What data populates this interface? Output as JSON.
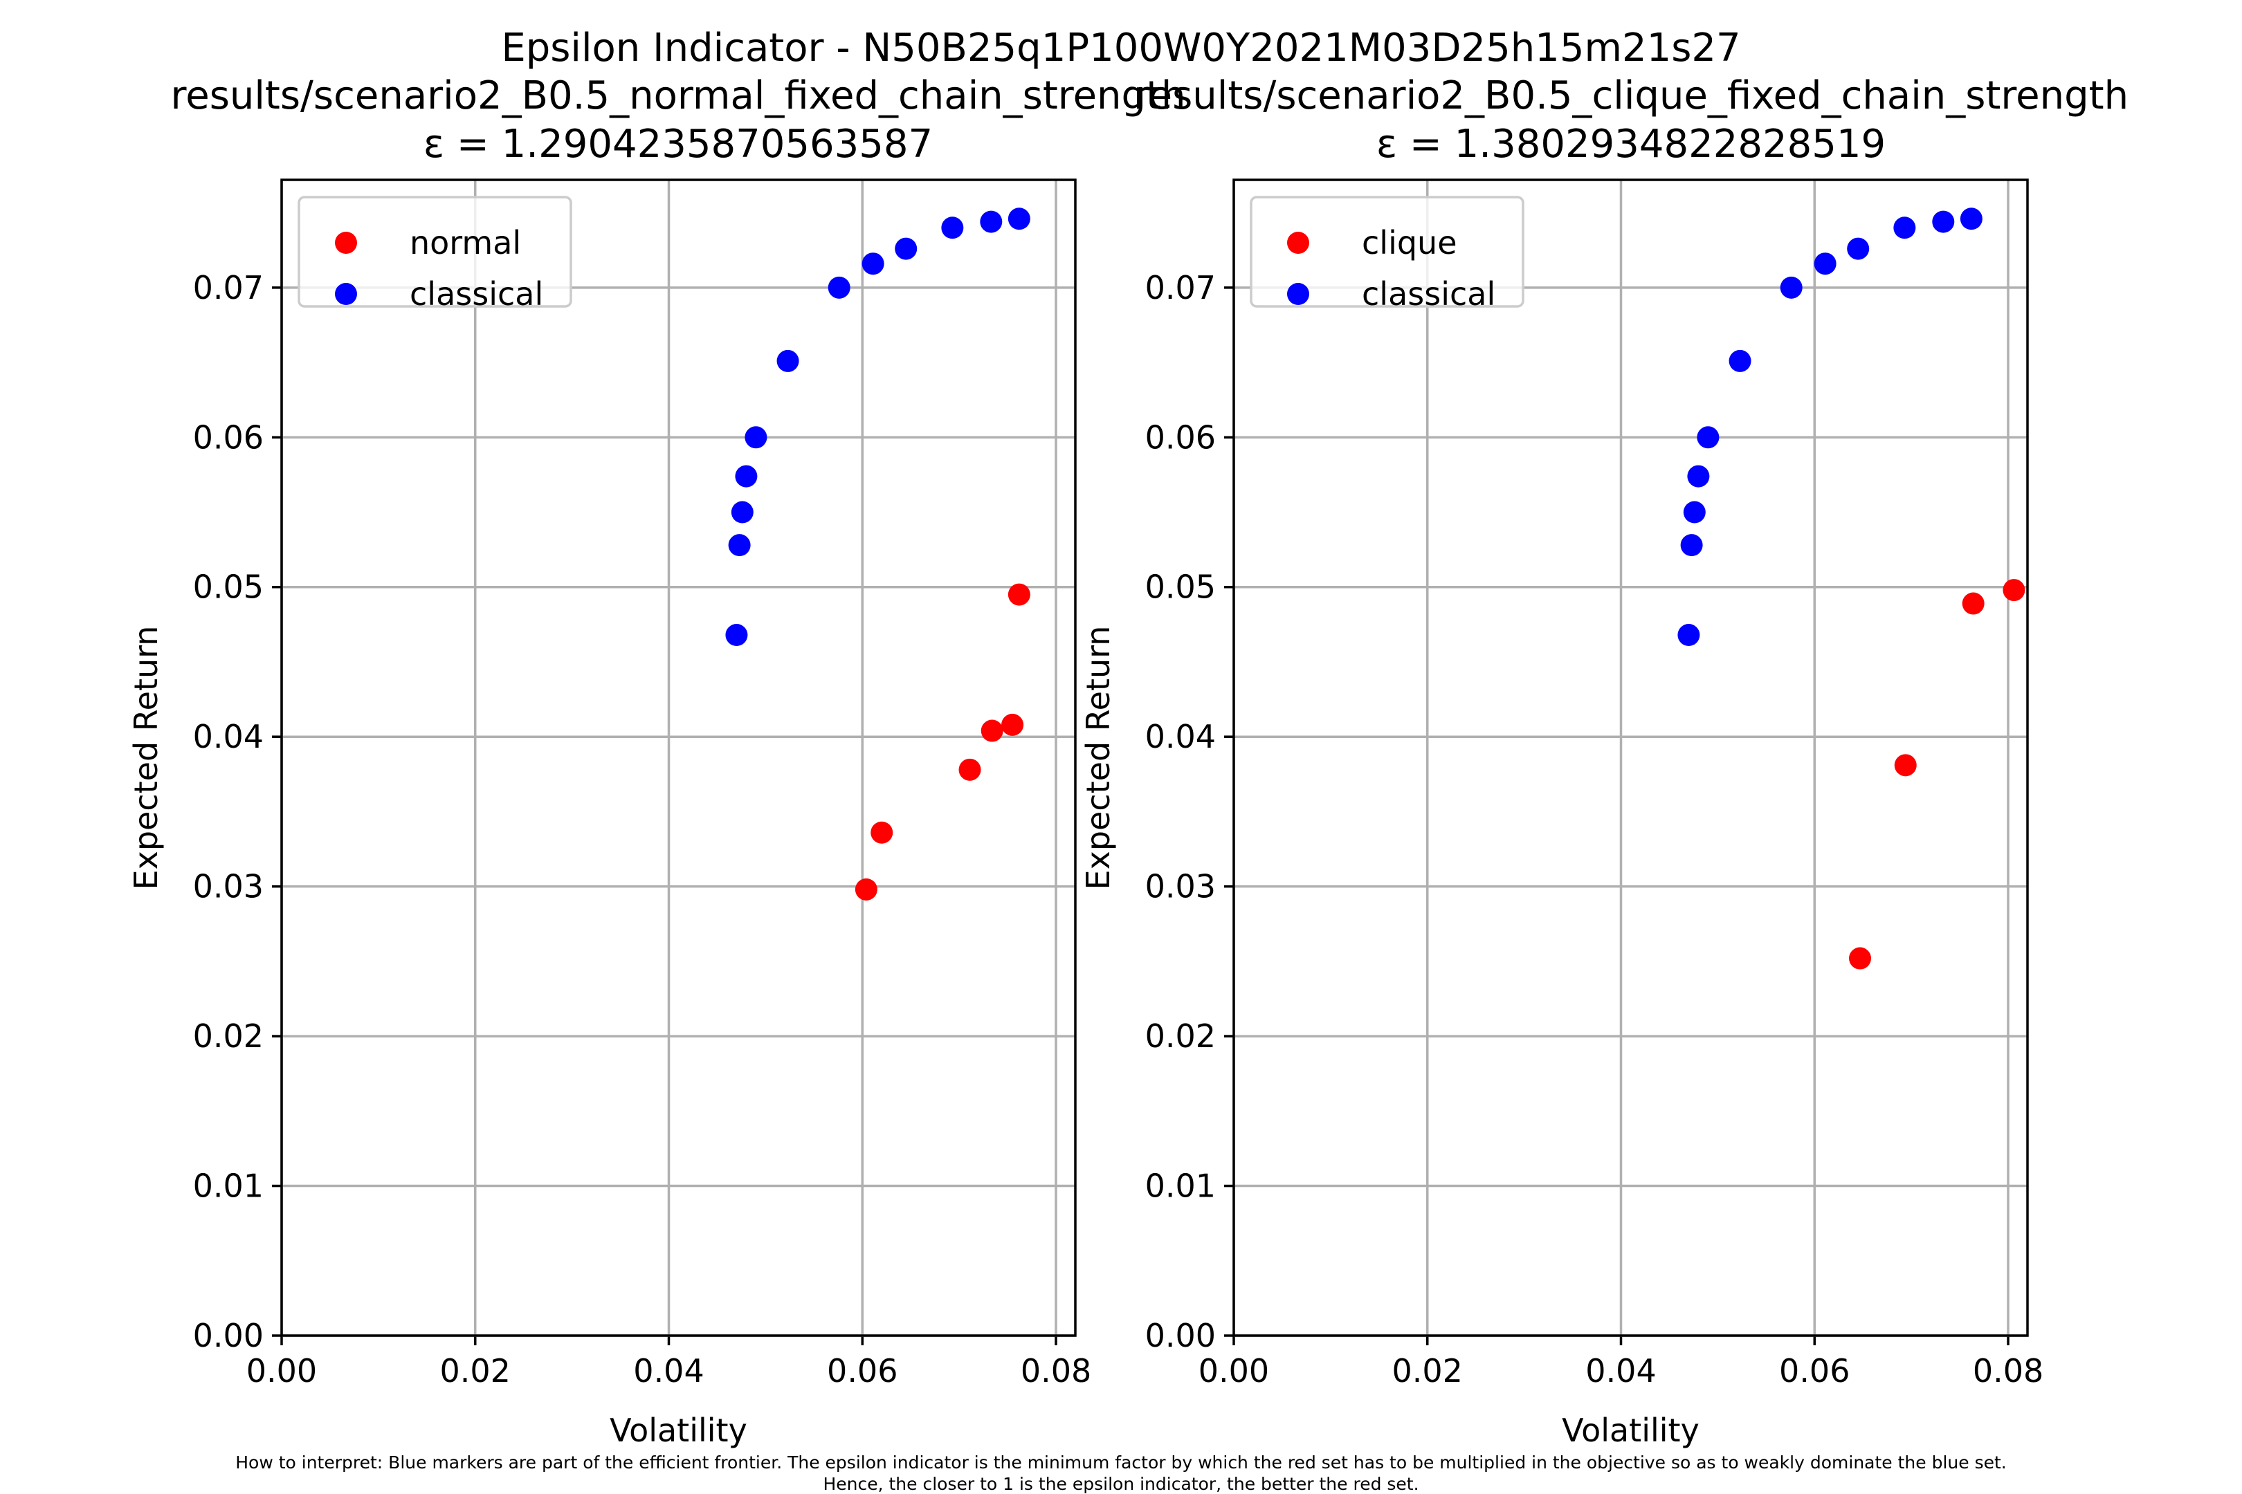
{
  "figure": {
    "suptitle": "Epsilon Indicator - N50B25q1P100W0Y2021M03D25h15m21s27",
    "footnote": [
      "How to interpret: Blue markers are part of the efficient frontier. The epsilon indicator is the minimum factor by which the red set has to be multiplied in the objective so as to weakly dominate the blue set.",
      "Hence, the closer to 1 is the epsilon indicator, the better the red set."
    ]
  },
  "colors": {
    "red_set": "#ff0000",
    "blue_set": "#0000ff",
    "grid": "#b0b0b0"
  },
  "chart_data": [
    {
      "type": "scatter",
      "title": [
        "results/scenario2_B0.5_normal_fixed_chain_strength",
        "ε = 1.2904235870563587"
      ],
      "xlabel": "Volatility",
      "ylabel": "Expected Return",
      "xlim": [
        0.0,
        0.082
      ],
      "ylim": [
        0.0,
        0.0772
      ],
      "xticks": [
        "0.00",
        "0.02",
        "0.04",
        "0.06",
        "0.08"
      ],
      "yticks": [
        "0.00",
        "0.01",
        "0.02",
        "0.03",
        "0.04",
        "0.05",
        "0.06",
        "0.07"
      ],
      "grid": true,
      "legend_position": "upper-left",
      "series": [
        {
          "name": "normal",
          "color": "#ff0000",
          "points": [
            [
              0.0604,
              0.0298
            ],
            [
              0.062,
              0.0336
            ],
            [
              0.0711,
              0.0378
            ],
            [
              0.0734,
              0.0404
            ],
            [
              0.0755,
              0.0408
            ],
            [
              0.0762,
              0.0495
            ]
          ]
        },
        {
          "name": "classical",
          "color": "#0000ff",
          "points": [
            [
              0.047,
              0.0468
            ],
            [
              0.0473,
              0.0528
            ],
            [
              0.0476,
              0.055
            ],
            [
              0.048,
              0.0574
            ],
            [
              0.049,
              0.06
            ],
            [
              0.0523,
              0.0651
            ],
            [
              0.0576,
              0.07
            ],
            [
              0.0611,
              0.0716
            ],
            [
              0.0645,
              0.0726
            ],
            [
              0.0693,
              0.074
            ],
            [
              0.0733,
              0.0744
            ],
            [
              0.0762,
              0.0746
            ]
          ]
        }
      ]
    },
    {
      "type": "scatter",
      "title": [
        "results/scenario2_B0.5_clique_fixed_chain_strength",
        "ε = 1.3802934822828519"
      ],
      "xlabel": "Volatility",
      "ylabel": "Expected Return",
      "xlim": [
        0.0,
        0.082
      ],
      "ylim": [
        0.0,
        0.0772
      ],
      "xticks": [
        "0.00",
        "0.02",
        "0.04",
        "0.06",
        "0.08"
      ],
      "yticks": [
        "0.00",
        "0.01",
        "0.02",
        "0.03",
        "0.04",
        "0.05",
        "0.06",
        "0.07"
      ],
      "grid": true,
      "legend_position": "upper-left",
      "series": [
        {
          "name": "clique",
          "color": "#ff0000",
          "points": [
            [
              0.0647,
              0.0252
            ],
            [
              0.0694,
              0.0381
            ],
            [
              0.0764,
              0.0489
            ],
            [
              0.0806,
              0.0498
            ]
          ]
        },
        {
          "name": "classical",
          "color": "#0000ff",
          "points": [
            [
              0.047,
              0.0468
            ],
            [
              0.0473,
              0.0528
            ],
            [
              0.0476,
              0.055
            ],
            [
              0.048,
              0.0574
            ],
            [
              0.049,
              0.06
            ],
            [
              0.0523,
              0.0651
            ],
            [
              0.0576,
              0.07
            ],
            [
              0.0611,
              0.0716
            ],
            [
              0.0645,
              0.0726
            ],
            [
              0.0693,
              0.074
            ],
            [
              0.0733,
              0.0744
            ],
            [
              0.0762,
              0.0746
            ]
          ]
        }
      ]
    }
  ]
}
